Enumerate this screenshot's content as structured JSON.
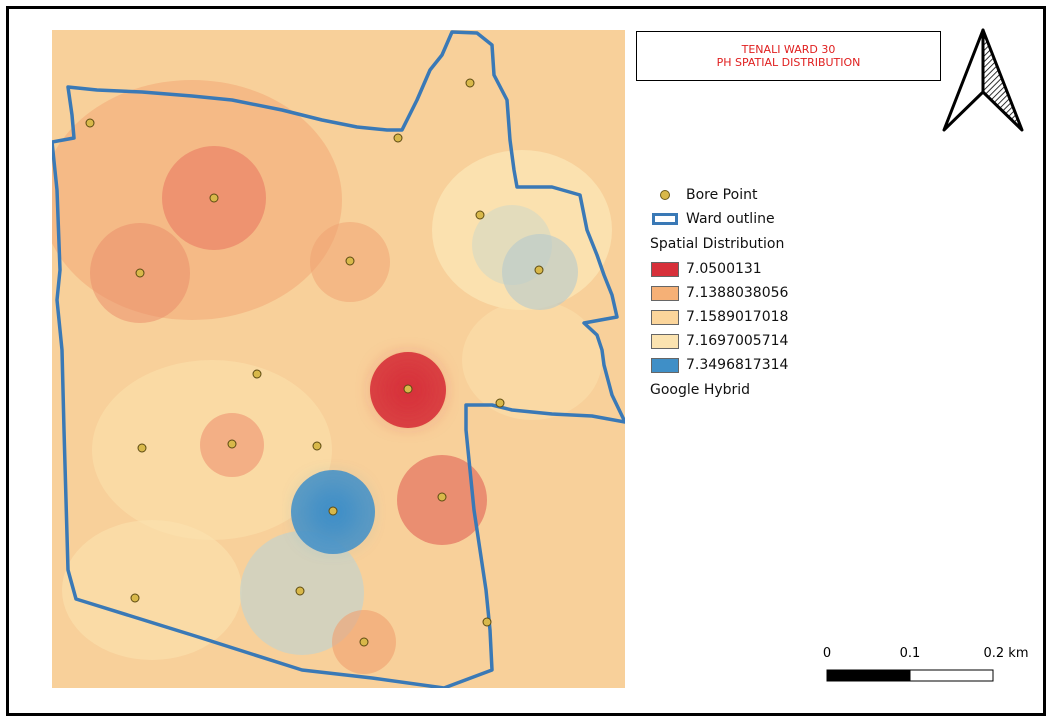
{
  "title": {
    "line1": "TENALI WARD 30",
    "line2": "PH SPATIAL DISTRIBUTION"
  },
  "legend": {
    "bore_point": "Bore Point",
    "ward_outline": "Ward outline",
    "spatial_heading": "Spatial Distribution",
    "classes": [
      {
        "label": "7.0500131",
        "color": "#d7303a"
      },
      {
        "label": "7.1388038056",
        "color": "#f5b076"
      },
      {
        "label": "7.1589017018",
        "color": "#fbd59b"
      },
      {
        "label": "7.1697005714",
        "color": "#fbe3b0"
      },
      {
        "label": "7.3496817314",
        "color": "#3f8fc7"
      }
    ],
    "basemap": "Google Hybrid"
  },
  "scale_bar": {
    "labels": [
      "0",
      "0.1",
      "0.2 km"
    ]
  },
  "icons": {
    "north_arrow": "north-arrow-icon"
  },
  "colors": {
    "outline": "#3a79b6",
    "point_fill": "#d8b84a",
    "title_text": "#e02020"
  }
}
